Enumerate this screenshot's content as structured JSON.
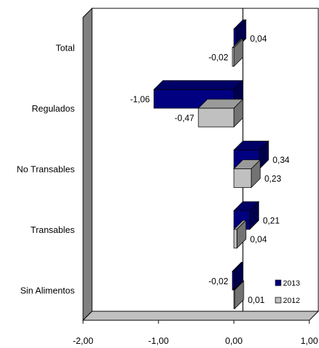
{
  "chart_data": {
    "type": "bar",
    "orientation": "horizontal",
    "categories": [
      "Total",
      "Regulados",
      "No Transables",
      "Transables",
      "Sin Alimentos"
    ],
    "series": [
      {
        "name": "2013",
        "values": [
          0.04,
          -1.06,
          0.34,
          0.21,
          -0.02
        ],
        "labels": [
          "0,04",
          "-1,06",
          "0,34",
          "0,21",
          "-0,02"
        ],
        "color": "#000080"
      },
      {
        "name": "2012",
        "values": [
          -0.02,
          -0.47,
          0.23,
          0.04,
          0.01
        ],
        "labels": [
          "-0,02",
          "-0,47",
          "0,23",
          "0,04",
          "0,01"
        ],
        "color": "#c0c0c0"
      }
    ],
    "xlim": [
      -2,
      1
    ],
    "xticks": [
      -2,
      -1,
      0,
      1
    ],
    "xtick_labels": [
      "-2,00",
      "-1,00",
      "0,00",
      "1,00"
    ],
    "legend_position": "bottom-right",
    "three_d": true,
    "wall_color": "#808080"
  }
}
